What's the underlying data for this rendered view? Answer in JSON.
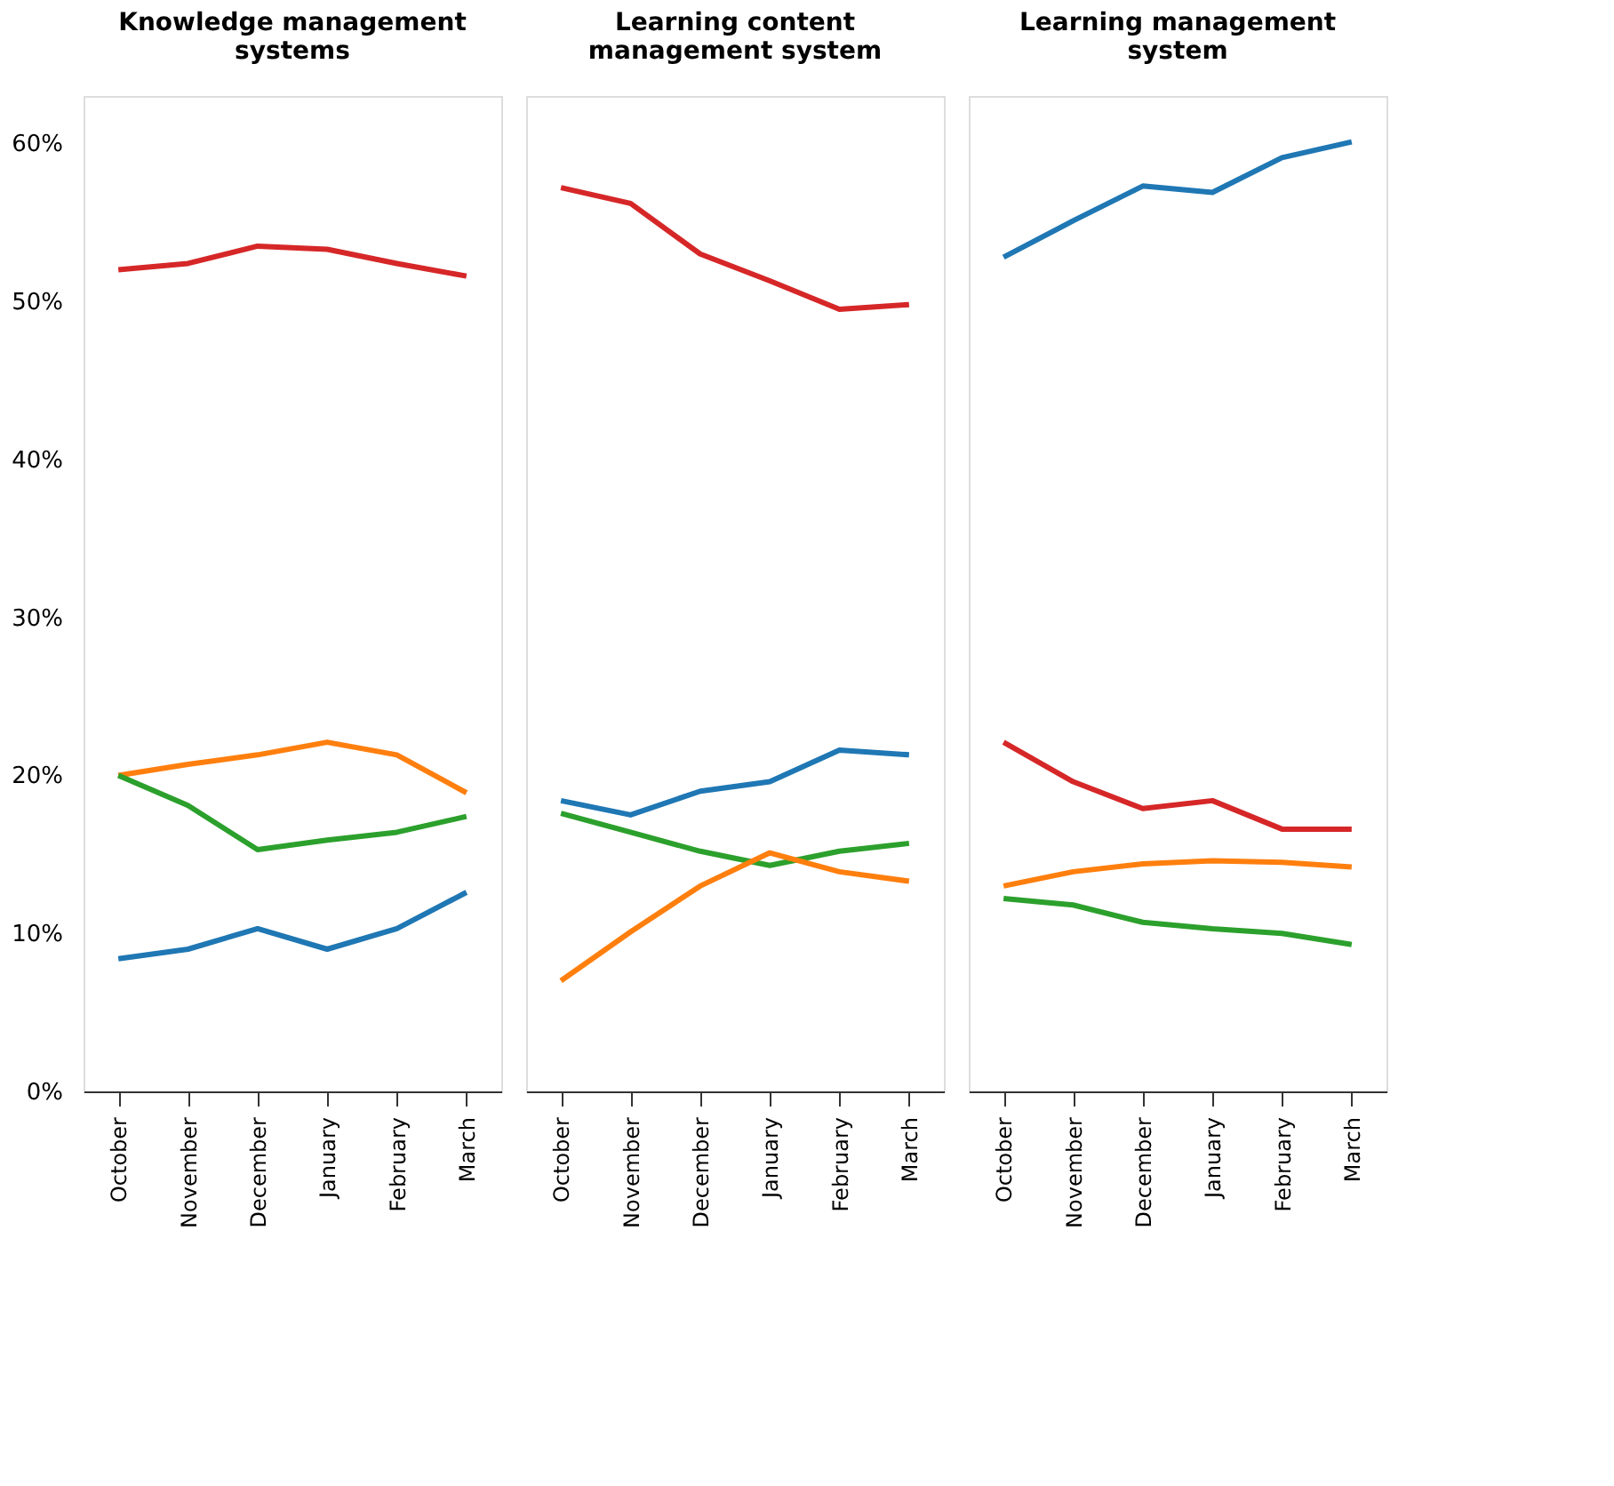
{
  "chart_data": [
    {
      "type": "line",
      "title": [
        "Knowledge management",
        "systems"
      ],
      "categories": [
        "October",
        "November",
        "December",
        "January",
        "February",
        "March"
      ],
      "ylim": [
        0,
        63
      ],
      "yticks": [
        {
          "value": 0,
          "label": "0%"
        },
        {
          "value": 10,
          "label": "10%"
        },
        {
          "value": 20,
          "label": "20%"
        },
        {
          "value": 30,
          "label": "30%"
        },
        {
          "value": 40,
          "label": "40%"
        },
        {
          "value": 50,
          "label": "50%"
        },
        {
          "value": 60,
          "label": "60%"
        }
      ],
      "grid": false,
      "legend": false,
      "series": [
        {
          "color": "#d62728",
          "values": [
            52.0,
            52.4,
            53.5,
            53.3,
            52.4,
            51.6
          ]
        },
        {
          "color": "#ff7f0e",
          "values": [
            20.0,
            20.7,
            21.3,
            22.1,
            21.3,
            18.9
          ]
        },
        {
          "color": "#2ca02c",
          "values": [
            20.0,
            18.1,
            15.3,
            15.9,
            16.4,
            17.4
          ]
        },
        {
          "color": "#1f77b4",
          "values": [
            8.4,
            9.0,
            10.3,
            9.0,
            10.3,
            12.6
          ]
        }
      ]
    },
    {
      "type": "line",
      "title": [
        "Learning content",
        "management system"
      ],
      "categories": [
        "October",
        "November",
        "December",
        "January",
        "February",
        "March"
      ],
      "ylim": [
        0,
        63
      ],
      "tick_labels": "x",
      "grid": false,
      "legend": false,
      "series": [
        {
          "color": "#d62728",
          "values": [
            57.2,
            56.2,
            53.0,
            51.3,
            49.5,
            49.8
          ]
        },
        {
          "color": "#1f77b4",
          "values": [
            18.4,
            17.5,
            19.0,
            19.6,
            21.6,
            21.3
          ]
        },
        {
          "color": "#2ca02c",
          "values": [
            17.6,
            16.4,
            15.2,
            14.3,
            15.2,
            15.7
          ]
        },
        {
          "color": "#ff7f0e",
          "values": [
            7.0,
            10.1,
            13.0,
            15.1,
            13.9,
            13.3
          ]
        }
      ]
    },
    {
      "type": "line",
      "title": [
        "Learning management",
        "system"
      ],
      "categories": [
        "October",
        "November",
        "December",
        "January",
        "February",
        "March"
      ],
      "ylim": [
        0,
        63
      ],
      "tick_labels": "x",
      "grid": false,
      "legend": false,
      "series": [
        {
          "color": "#1f77b4",
          "values": [
            52.8,
            55.1,
            57.3,
            56.9,
            59.1,
            60.1
          ]
        },
        {
          "color": "#d62728",
          "values": [
            22.1,
            19.6,
            17.9,
            18.4,
            16.6,
            16.6
          ]
        },
        {
          "color": "#ff7f0e",
          "values": [
            13.0,
            13.9,
            14.4,
            14.6,
            14.5,
            14.2
          ]
        },
        {
          "color": "#2ca02c",
          "values": [
            12.2,
            11.8,
            10.7,
            10.3,
            10.0,
            9.3
          ]
        }
      ]
    }
  ]
}
